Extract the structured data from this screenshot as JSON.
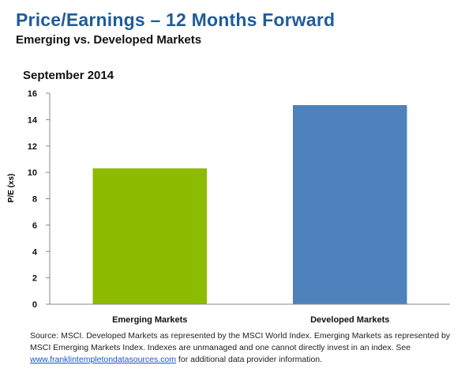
{
  "header": {
    "title": "Price/Earnings  – 12 Months Forward",
    "subtitle": "Emerging vs. Developed Markets",
    "period": "September 2014"
  },
  "chart_data": {
    "type": "bar",
    "categories": [
      "Emerging Markets",
      "Developed Markets"
    ],
    "values": [
      10.3,
      15.1
    ],
    "colors": [
      "#8dbb00",
      "#4f81bd"
    ],
    "ylabel": "P/E (xs)",
    "xlabel": "",
    "ylim": [
      0,
      16
    ],
    "yticks": [
      0,
      2,
      4,
      6,
      8,
      10,
      12,
      14,
      16
    ],
    "grid": false,
    "legend": "none"
  },
  "footnote": {
    "text_before": "Source: MSCI. Developed Markets as represented by the MSCI World Index. Emerging Markets as represented by MSCI Emerging Markets Index. Indexes are unmanaged and one cannot directly invest in an index. See ",
    "link": "www.franklintempletondatasources.com",
    "text_after": " for additional data provider information."
  }
}
